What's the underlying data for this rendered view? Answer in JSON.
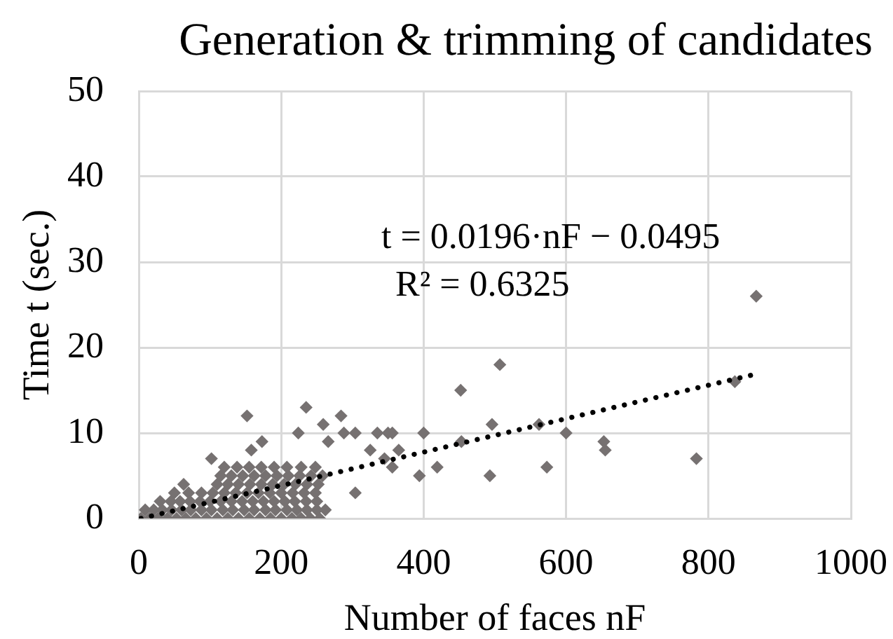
{
  "chart_data": {
    "type": "scatter",
    "title": "Generation & trimming of candidates",
    "xlabel": "Number of faces nF",
    "ylabel": "Time t (sec.)",
    "annotations": [
      "t = 0.0196·nF − 0.0495",
      "R² = 0.6325"
    ],
    "xlim": [
      0,
      1000
    ],
    "ylim": [
      0,
      50
    ],
    "xticks": [
      0,
      200,
      400,
      600,
      800,
      1000
    ],
    "yticks": [
      0,
      10,
      20,
      30,
      40,
      50
    ],
    "grid": true,
    "marker": "diamond",
    "series": [
      {
        "type": "scatter",
        "color": "#767171",
        "x": [
          867,
          837,
          783,
          655,
          653,
          600,
          573,
          562,
          507,
          496,
          493,
          453,
          452,
          419,
          400,
          394,
          365,
          356,
          356,
          350,
          345,
          335,
          325,
          304,
          304,
          288,
          284,
          266,
          259,
          235,
          224,
          219,
          173,
          158,
          152,
          102,
          63,
          70,
          3,
          15,
          27,
          40,
          53,
          66,
          80,
          95,
          110,
          125,
          140,
          155,
          170,
          185,
          200,
          215,
          228,
          241,
          254,
          9,
          21,
          33,
          46,
          60,
          73,
          88,
          102,
          118,
          132,
          148,
          162,
          178,
          192,
          208,
          222,
          236,
          250,
          262,
          30,
          45,
          58,
          72,
          86,
          100,
          115,
          130,
          145,
          160,
          175,
          190,
          205,
          235,
          250,
          50,
          88,
          104,
          120,
          136,
          152,
          168,
          184,
          200,
          216,
          232,
          248,
          110,
          125,
          140,
          156,
          172,
          188,
          204,
          220,
          236,
          252,
          115,
          130,
          146,
          162,
          178,
          194,
          210,
          226,
          242,
          258,
          120,
          138,
          155,
          172,
          190,
          208,
          228,
          248
        ],
        "values": [
          26,
          16,
          7,
          8,
          9,
          10,
          6,
          11,
          18,
          11,
          5,
          9,
          15,
          6,
          10,
          5,
          8,
          10,
          6,
          10,
          7,
          10,
          8,
          10,
          3,
          10,
          12,
          9,
          11,
          13,
          10,
          2,
          9,
          8,
          12,
          7,
          4,
          3,
          0,
          0,
          0,
          0,
          0,
          0,
          0,
          0,
          0,
          0,
          0,
          0,
          0,
          0,
          0,
          0,
          0,
          0,
          0,
          1,
          1,
          1,
          1,
          1,
          1,
          1,
          1,
          1,
          1,
          1,
          1,
          1,
          1,
          1,
          1,
          1,
          1,
          1,
          2,
          2,
          2,
          2,
          2,
          2,
          2,
          2,
          2,
          2,
          2,
          2,
          2,
          2,
          2,
          3,
          3,
          3,
          3,
          3,
          3,
          3,
          3,
          3,
          3,
          3,
          3,
          4,
          4,
          4,
          4,
          4,
          4,
          4,
          4,
          4,
          4,
          5,
          5,
          5,
          5,
          5,
          5,
          5,
          5,
          5,
          5,
          6,
          6,
          6,
          6,
          6,
          6,
          6,
          6
        ]
      },
      {
        "type": "line",
        "color": "#000000",
        "x": [
          3,
          867
        ],
        "values": [
          0,
          16.9
        ],
        "marker": "none",
        "line_style": "dotted"
      }
    ]
  }
}
